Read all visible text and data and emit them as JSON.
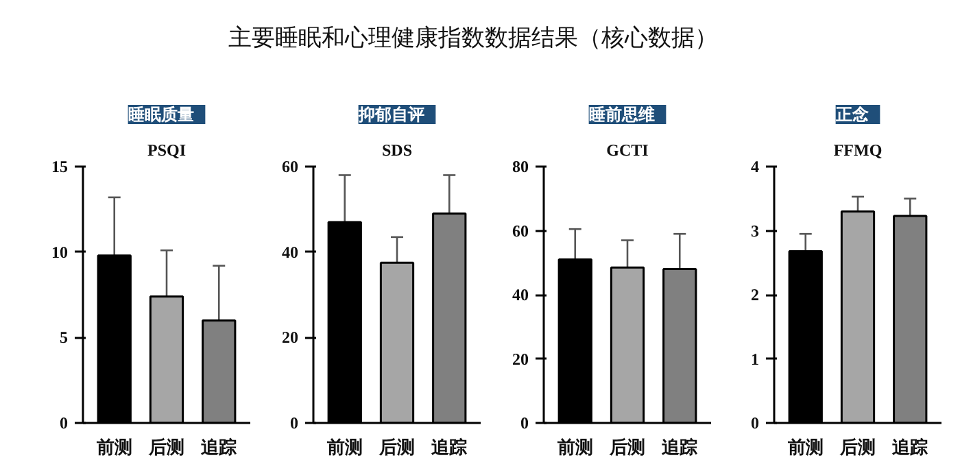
{
  "chart_data": [
    {
      "type": "other",
      "title": "主要睡眠和心理健康指数数据结果（核心数据）"
    },
    {
      "type": "bar",
      "title": "睡眠质量",
      "subtitle": "PSQI",
      "categories": [
        "前测",
        "后测",
        "追踪"
      ],
      "values": [
        9.8,
        7.4,
        6.0
      ],
      "errors": [
        [
          9.8,
          13.2
        ],
        [
          7.4,
          10.1
        ],
        [
          6.0,
          9.2
        ]
      ],
      "colors": [
        "#000000",
        "#a6a6a6",
        "#808080"
      ],
      "ylim": [
        0,
        15
      ],
      "yticks": [
        0,
        5,
        10,
        15
      ],
      "grid": false
    },
    {
      "type": "bar",
      "title": "抑郁自评",
      "subtitle": "SDS",
      "categories": [
        "前测",
        "后测",
        "追踪"
      ],
      "values": [
        47,
        37.5,
        49
      ],
      "errors": [
        [
          47,
          58
        ],
        [
          37.5,
          43.5
        ],
        [
          49,
          58
        ]
      ],
      "colors": [
        "#000000",
        "#a6a6a6",
        "#808080"
      ],
      "ylim": [
        0,
        60
      ],
      "yticks": [
        0,
        20,
        40,
        60
      ],
      "grid": false
    },
    {
      "type": "bar",
      "title": "睡前思维",
      "subtitle": "GCTI",
      "categories": [
        "前测",
        "后测",
        "追踪"
      ],
      "values": [
        51,
        48.5,
        48
      ],
      "errors": [
        [
          51,
          60.5
        ],
        [
          48.5,
          57
        ],
        [
          48,
          59
        ]
      ],
      "colors": [
        "#000000",
        "#a6a6a6",
        "#808080"
      ],
      "ylim": [
        0,
        80
      ],
      "yticks": [
        0,
        20,
        40,
        60,
        80
      ],
      "grid": false
    },
    {
      "type": "bar",
      "title": "正念",
      "subtitle": "FFMQ",
      "categories": [
        "前测",
        "后测",
        "追踪"
      ],
      "values": [
        2.68,
        3.3,
        3.23
      ],
      "errors": [
        [
          2.68,
          2.95
        ],
        [
          3.3,
          3.53
        ],
        [
          3.23,
          3.5
        ]
      ],
      "colors": [
        "#000000",
        "#a6a6a6",
        "#808080"
      ],
      "ylim": [
        0,
        4
      ],
      "yticks": [
        0,
        1,
        2,
        3,
        4
      ],
      "grid": false
    }
  ]
}
